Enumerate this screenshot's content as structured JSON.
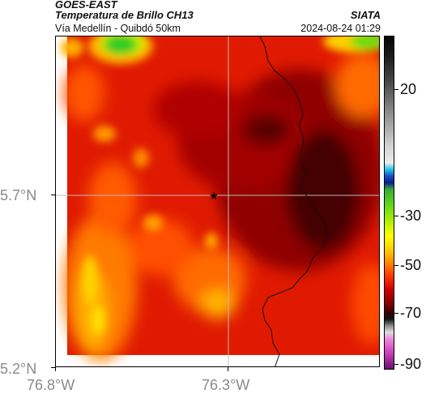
{
  "header": {
    "satellite": "GOES-EAST",
    "product": "Temperatura de Brillo CH13",
    "region": "Vía Medellín - Quibdó 50km",
    "source": "SIATA",
    "datetime": "2024-08-24 01:29"
  },
  "axes": {
    "lat_ticks": [
      "5.7°N",
      "5.2°N"
    ],
    "lon_ticks": [
      "76.8°W",
      "76.3°W"
    ]
  },
  "colorbar": {
    "ticks": [
      "20",
      "-30",
      "-50",
      "-70",
      "-90"
    ]
  },
  "map": {
    "marker": "star",
    "colors": {
      "cold": "#3a0000",
      "mid": "#c00000",
      "warm": "#ff3a00",
      "orange": "#ff9a00",
      "yellow": "#ffe600",
      "green": "#33cc22"
    }
  }
}
